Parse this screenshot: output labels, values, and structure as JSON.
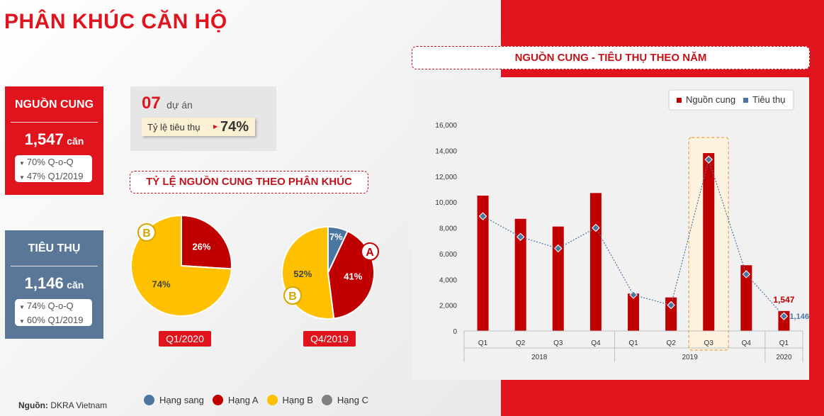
{
  "title": "PHÂN KHÚC CĂN HỘ",
  "supply_box": {
    "heading": "NGUỒN CUNG",
    "value": "1,547",
    "unit": "căn",
    "change_1": "70% Q-o-Q",
    "change_2": "47% Q1/2019"
  },
  "absorption_box": {
    "heading": "TIÊU THỤ",
    "value": "1,146",
    "unit": "căn",
    "change_1": "74% Q-o-Q",
    "change_2": "60% Q1/2019"
  },
  "projects": {
    "count": "07",
    "count_unit": "dự án",
    "rate_label": "Tỷ lệ tiêu thụ",
    "rate_value": "74%"
  },
  "pie_section_title": "TỶ LỆ NGUỒN CUNG THEO PHÂN KHÚC",
  "pies": [
    {
      "period": "Q1/2020",
      "slices": [
        {
          "segment": "Hạng A",
          "value": 26,
          "label": "26%"
        },
        {
          "segment": "Hạng B",
          "value": 74,
          "label": "74%"
        }
      ],
      "badges": [
        "B"
      ]
    },
    {
      "period": "Q4/2019",
      "slices": [
        {
          "segment": "Hạng sang",
          "value": 7,
          "label": "7%"
        },
        {
          "segment": "Hạng A",
          "value": 41,
          "label": "41%"
        },
        {
          "segment": "Hạng B",
          "value": 52,
          "label": "52%"
        }
      ],
      "badges": [
        "A",
        "B"
      ]
    }
  ],
  "segment_legend": [
    {
      "name": "Hạng sang",
      "color": "#4a76a0"
    },
    {
      "name": "Hạng A",
      "color": "#c00000"
    },
    {
      "name": "Hạng B",
      "color": "#ffc000"
    },
    {
      "name": "Hạng C",
      "color": "#808080"
    }
  ],
  "source": {
    "label": "Nguồn:",
    "name": "DKRA Vietnam"
  },
  "chart_title": "NGUỒN CUNG - TIÊU THỤ THEO NĂM",
  "chart_data": {
    "type": "bar",
    "categories": [
      "Q1",
      "Q2",
      "Q3",
      "Q4",
      "Q1",
      "Q2",
      "Q3",
      "Q4",
      "Q1"
    ],
    "year_groups": [
      {
        "label": "2018",
        "count": 4
      },
      {
        "label": "2019",
        "count": 4
      },
      {
        "label": "2020",
        "count": 1
      }
    ],
    "series": [
      {
        "name": "Nguồn cung",
        "type": "bar",
        "color": "#c00000",
        "values": [
          10500,
          8700,
          8100,
          10700,
          2900,
          2600,
          13800,
          5100,
          1547
        ]
      },
      {
        "name": "Tiêu thụ",
        "type": "line",
        "color": "#4a76a0",
        "values": [
          8900,
          7300,
          6400,
          8000,
          2800,
          2000,
          13300,
          4400,
          1146
        ]
      }
    ],
    "ylim": [
      0,
      16000
    ],
    "yticks": [
      "0",
      "2,000",
      "4,000",
      "6,000",
      "8,000",
      "10,000",
      "12,000",
      "14,000",
      "16,000"
    ],
    "data_labels": {
      "supply_last": "1,547",
      "absorption_last": "1,146"
    },
    "legend_position": "top-right",
    "highlighted_category_index": 6
  }
}
